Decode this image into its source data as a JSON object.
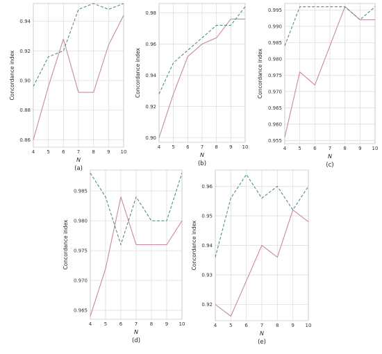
{
  "colors": {
    "solid_series": "#c98a96",
    "dashed_series": "#4f8a90",
    "grid": "#dddddd",
    "axis": "#bbbbbb"
  },
  "chart_data": [
    {
      "type": "line",
      "caption": "(a)",
      "xlabel": "N",
      "ylabel": "Concordance index",
      "x": [
        4,
        5,
        6,
        7,
        8,
        9,
        10
      ],
      "xlim": [
        4,
        10
      ],
      "ylim": [
        0.855,
        0.952
      ],
      "yticks": [
        "0.86",
        "0.88",
        "0.90",
        "0.92",
        "0.94"
      ],
      "series": [
        {
          "style": "solid",
          "values": [
            0.86,
            0.896,
            0.928,
            0.892,
            0.892,
            0.924,
            0.944
          ]
        },
        {
          "style": "dashed",
          "values": [
            0.896,
            0.916,
            0.92,
            0.948,
            0.952,
            0.948,
            0.952
          ]
        }
      ]
    },
    {
      "type": "line",
      "caption": "(b)",
      "xlabel": "N",
      "ylabel": "Concordance index",
      "x": [
        4,
        5,
        6,
        7,
        8,
        9,
        10
      ],
      "xlim": [
        4,
        10
      ],
      "ylim": [
        0.897,
        0.986
      ],
      "yticks": [
        "0.90",
        "0.92",
        "0.94",
        "0.96",
        "0.98"
      ],
      "series": [
        {
          "style": "solid",
          "values": [
            0.9,
            0.928,
            0.952,
            0.96,
            0.964,
            0.976,
            0.976
          ]
        },
        {
          "style": "dashed",
          "values": [
            0.928,
            0.948,
            0.956,
            0.964,
            0.972,
            0.972,
            0.984
          ]
        }
      ]
    },
    {
      "type": "line",
      "caption": "(c)",
      "xlabel": "N",
      "ylabel": "Concordance index",
      "x": [
        4,
        5,
        6,
        7,
        8,
        9,
        10
      ],
      "xlim": [
        4,
        10
      ],
      "ylim": [
        0.954,
        0.997
      ],
      "yticks": [
        "0.955",
        "0.960",
        "0.965",
        "0.970",
        "0.975",
        "0.980",
        "0.985",
        "0.990",
        "0.995"
      ],
      "series": [
        {
          "style": "solid",
          "values": [
            0.956,
            0.976,
            0.972,
            0.984,
            0.996,
            0.992,
            0.992
          ]
        },
        {
          "style": "dashed",
          "values": [
            0.984,
            0.996,
            0.996,
            0.996,
            0.996,
            0.992,
            0.996
          ]
        }
      ]
    },
    {
      "type": "line",
      "caption": "(d)",
      "xlabel": "N",
      "ylabel": "Concordance index",
      "x": [
        4,
        5,
        6,
        7,
        8,
        9,
        10
      ],
      "xlim": [
        4,
        10
      ],
      "ylim": [
        0.9635,
        0.9885
      ],
      "yticks": [
        "0.965",
        "0.970",
        "0.975",
        "0.980",
        "0.985"
      ],
      "series": [
        {
          "style": "solid",
          "values": [
            0.964,
            0.972,
            0.984,
            0.976,
            0.976,
            0.976,
            0.98
          ]
        },
        {
          "style": "dashed",
          "values": [
            0.988,
            0.984,
            0.976,
            0.984,
            0.98,
            0.98,
            0.988
          ]
        }
      ]
    },
    {
      "type": "line",
      "caption": "(e)",
      "xlabel": "N",
      "ylabel": "Concordance index",
      "x": [
        4,
        5,
        6,
        7,
        8,
        9,
        10
      ],
      "xlim": [
        4,
        10
      ],
      "ylim": [
        0.9145,
        0.9655
      ],
      "yticks": [
        "0.92",
        "0.93",
        "0.94",
        "0.95",
        "0.96"
      ],
      "series": [
        {
          "style": "solid",
          "values": [
            0.92,
            0.916,
            0.928,
            0.94,
            0.936,
            0.952,
            0.948
          ]
        },
        {
          "style": "dashed",
          "values": [
            0.936,
            0.956,
            0.964,
            0.956,
            0.96,
            0.952,
            0.96
          ]
        }
      ]
    }
  ]
}
